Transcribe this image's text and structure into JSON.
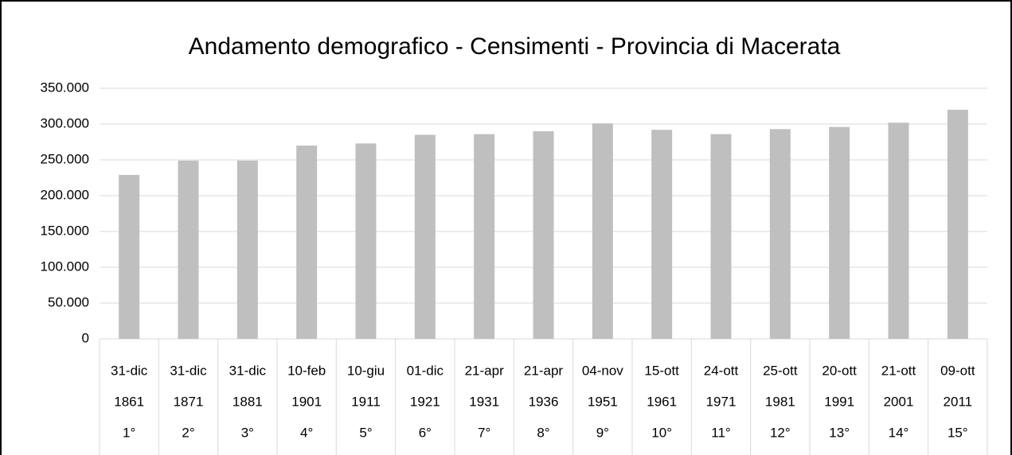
{
  "chart_data": {
    "type": "bar",
    "title": "Andamento demografico - Censimenti - Provincia di Macerata",
    "categories": [
      [
        "31-dic",
        "1861",
        "1°"
      ],
      [
        "31-dic",
        "1871",
        "2°"
      ],
      [
        "31-dic",
        "1881",
        "3°"
      ],
      [
        "10-feb",
        "1901",
        "4°"
      ],
      [
        "10-giu",
        "1911",
        "5°"
      ],
      [
        "01-dic",
        "1921",
        "6°"
      ],
      [
        "21-apr",
        "1931",
        "7°"
      ],
      [
        "21-apr",
        "1936",
        "8°"
      ],
      [
        "04-nov",
        "1951",
        "9°"
      ],
      [
        "15-ott",
        "1961",
        "10°"
      ],
      [
        "24-ott",
        "1971",
        "11°"
      ],
      [
        "25-ott",
        "1981",
        "12°"
      ],
      [
        "20-ott",
        "1991",
        "13°"
      ],
      [
        "21-ott",
        "2001",
        "14°"
      ],
      [
        "09-ott",
        "2011",
        "15°"
      ]
    ],
    "values": [
      229000,
      249000,
      249000,
      270000,
      273000,
      285000,
      286000,
      290000,
      301000,
      292000,
      286000,
      293000,
      296000,
      302000,
      320000
    ],
    "color": "#bfbfbf",
    "ylim": [
      0,
      350000
    ],
    "yticks": [
      0,
      {
        "value": 50000,
        "label": "50.000"
      },
      {
        "value": 100000,
        "label": "100.000"
      },
      {
        "value": 150000,
        "label": "150.000"
      },
      {
        "value": 200000,
        "label": "200.000"
      },
      {
        "value": 250000,
        "label": "250.000"
      },
      {
        "value": 300000,
        "label": "300.000"
      },
      {
        "value": 350000,
        "label": "350.000"
      }
    ],
    "grid": true
  }
}
